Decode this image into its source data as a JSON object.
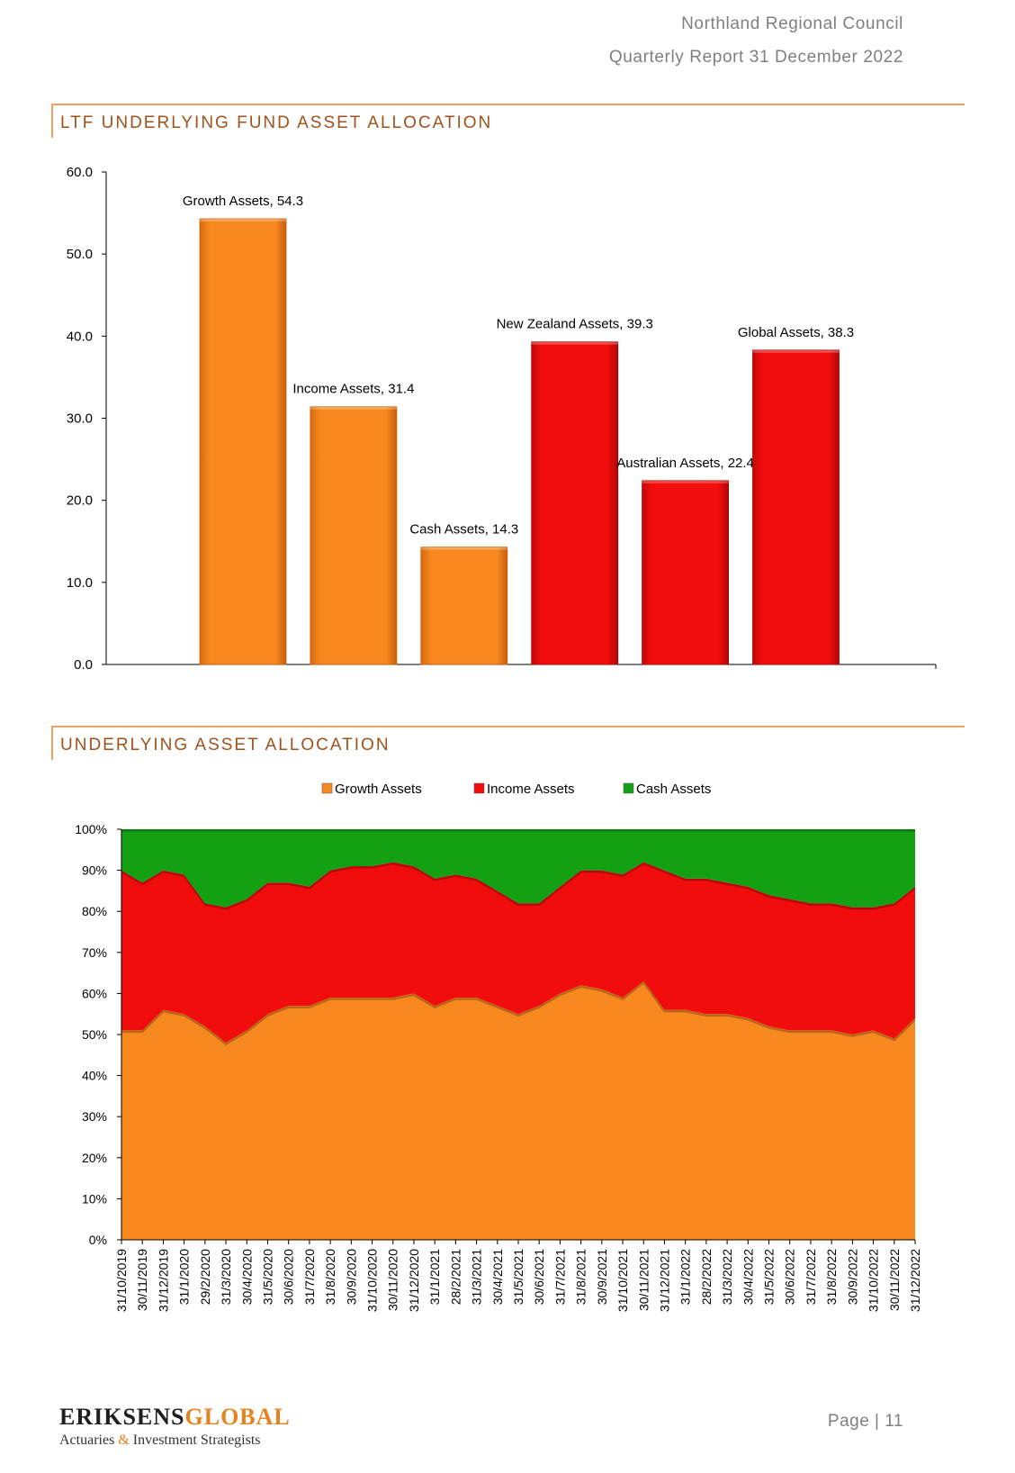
{
  "header": {
    "org": "Northland Regional Council",
    "report": "Quarterly Report 31 December 2022"
  },
  "sections": {
    "s1": "LTF UNDERLYING FUND ASSET ALLOCATION",
    "s2": "UNDERLYING ASSET ALLOCATION"
  },
  "footer": {
    "logo_a": "ERIKSENS",
    "logo_b": "GLOBAL",
    "tag_a": "Actuaries",
    "tag_amp": "&",
    "tag_b": "Investment Strategists",
    "page": "Page | 11"
  },
  "colors": {
    "orange": "#f7891f",
    "red": "#f20d0d",
    "green": "#13a013",
    "accent": "#a0521d"
  },
  "chart_data": [
    {
      "type": "bar",
      "categories": [
        "Growth Assets",
        "Income Assets",
        "Cash Assets",
        "New Zealand Assets",
        "Australian Assets",
        "Global Assets"
      ],
      "values": [
        54.3,
        31.4,
        14.3,
        39.3,
        22.4,
        38.3
      ],
      "data_labels": [
        "Growth Assets, 54.3",
        "Income Assets, 31.4",
        "Cash Assets, 14.3",
        "New Zealand Assets, 39.3",
        "Australian Assets, 22.4",
        "Global Assets, 38.3"
      ],
      "bar_colors": [
        "#f7891f",
        "#f7891f",
        "#f7891f",
        "#f20d0d",
        "#f20d0d",
        "#f20d0d"
      ],
      "ylim": [
        0,
        60
      ],
      "yticks": [
        "0.0",
        "10.0",
        "20.0",
        "30.0",
        "40.0",
        "50.0",
        "60.0"
      ],
      "grid": false
    },
    {
      "type": "area",
      "stacked": true,
      "x": [
        "31/10/2019",
        "30/11/2019",
        "31/12/2019",
        "31/1/2020",
        "29/2/2020",
        "31/3/2020",
        "30/4/2020",
        "31/5/2020",
        "30/6/2020",
        "31/7/2020",
        "31/8/2020",
        "30/9/2020",
        "31/10/2020",
        "30/11/2020",
        "31/12/2020",
        "31/1/2021",
        "28/2/2021",
        "31/3/2021",
        "30/4/2021",
        "31/5/2021",
        "30/6/2021",
        "31/7/2021",
        "31/8/2021",
        "30/9/2021",
        "31/10/2021",
        "30/11/2021",
        "31/12/2021",
        "31/1/2022",
        "28/2/2022",
        "31/3/2022",
        "30/4/2022",
        "31/5/2022",
        "30/6/2022",
        "31/7/2022",
        "31/8/2022",
        "30/9/2022",
        "31/10/2022",
        "30/11/2022",
        "31/12/2022"
      ],
      "series": [
        {
          "name": "Growth Assets",
          "color": "#f7891f",
          "values": [
            51,
            51,
            56,
            55,
            52,
            48,
            51,
            55,
            57,
            57,
            59,
            59,
            59,
            59,
            60,
            57,
            59,
            59,
            57,
            55,
            57,
            60,
            62,
            61,
            59,
            63,
            56,
            56,
            55,
            55,
            54,
            52,
            51,
            51,
            51,
            50,
            51,
            49,
            54
          ]
        },
        {
          "name": "Income Assets",
          "color": "#f20d0d",
          "values": [
            39,
            36,
            34,
            34,
            30,
            33,
            32,
            32,
            30,
            29,
            31,
            32,
            32,
            33,
            31,
            31,
            30,
            29,
            28,
            27,
            25,
            26,
            28,
            29,
            30,
            29,
            34,
            32,
            33,
            32,
            32,
            32,
            32,
            31,
            31,
            31,
            30,
            33,
            32
          ]
        },
        {
          "name": "Cash Assets",
          "color": "#13a013",
          "values": [
            10,
            13,
            10,
            11,
            18,
            19,
            17,
            13,
            13,
            14,
            10,
            9,
            9,
            8,
            9,
            12,
            11,
            12,
            15,
            18,
            18,
            14,
            10,
            10,
            11,
            8,
            10,
            12,
            12,
            13,
            14,
            16,
            17,
            18,
            18,
            19,
            19,
            18,
            14
          ]
        }
      ],
      "ylim": [
        0,
        100
      ],
      "yticks": [
        "0%",
        "10%",
        "20%",
        "30%",
        "40%",
        "50%",
        "60%",
        "70%",
        "80%",
        "90%",
        "100%"
      ],
      "legend": "top-center",
      "grid": false
    }
  ]
}
